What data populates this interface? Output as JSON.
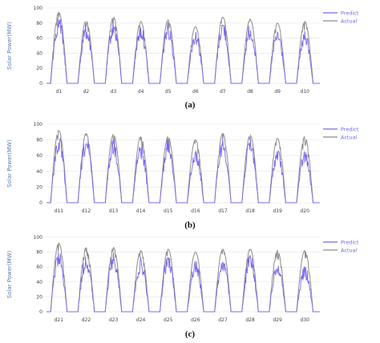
{
  "colors": {
    "predict": "#7b68ee",
    "actual": "#8c8c8c",
    "grid": "#e6e6e6"
  },
  "chart_data": [
    {
      "type": "line",
      "caption": "(a)",
      "ylabel": "Solar Power(MW)",
      "ylim": [
        0,
        100
      ],
      "yticks": [
        0,
        20,
        40,
        60,
        80,
        100
      ],
      "categories": [
        "d1",
        "d2",
        "d3",
        "d4",
        "d5",
        "d6",
        "d7",
        "d8",
        "d9",
        "d10"
      ],
      "legend_position": "top-right",
      "series": [
        {
          "name": "Predict",
          "daily_peak": [
            92,
            80,
            85,
            80,
            82,
            72,
            86,
            80,
            72,
            70
          ]
        },
        {
          "name": "Actual",
          "daily_peak": [
            94,
            83,
            88,
            82,
            84,
            75,
            88,
            85,
            80,
            82
          ]
        }
      ]
    },
    {
      "type": "line",
      "caption": "(b)",
      "ylabel": "Solar Power(MW)",
      "ylim": [
        0,
        100
      ],
      "yticks": [
        0,
        20,
        40,
        60,
        80,
        100
      ],
      "categories": [
        "d11",
        "d12",
        "d13",
        "d14",
        "d15",
        "d16",
        "d17",
        "d18",
        "d19",
        "d20"
      ],
      "legend_position": "top-right",
      "series": [
        {
          "name": "Predict",
          "daily_peak": [
            86,
            85,
            84,
            76,
            82,
            70,
            84,
            84,
            70,
            68
          ]
        },
        {
          "name": "Actual",
          "daily_peak": [
            92,
            88,
            87,
            84,
            84,
            80,
            88,
            86,
            82,
            84
          ]
        }
      ]
    },
    {
      "type": "line",
      "caption": "(c)",
      "ylabel": "Solar Power(MW)",
      "ylim": [
        0,
        100
      ],
      "yticks": [
        0,
        20,
        40,
        60,
        80,
        100
      ],
      "categories": [
        "d21",
        "d22",
        "d23",
        "d24",
        "d25",
        "d26",
        "d27",
        "d28",
        "d29",
        "d30"
      ],
      "legend_position": "top-right",
      "series": [
        {
          "name": "Predict",
          "daily_peak": [
            82,
            78,
            80,
            72,
            78,
            70,
            74,
            78,
            70,
            62
          ]
        },
        {
          "name": "Actual",
          "daily_peak": [
            92,
            86,
            86,
            82,
            84,
            80,
            84,
            84,
            82,
            82
          ]
        }
      ]
    }
  ]
}
